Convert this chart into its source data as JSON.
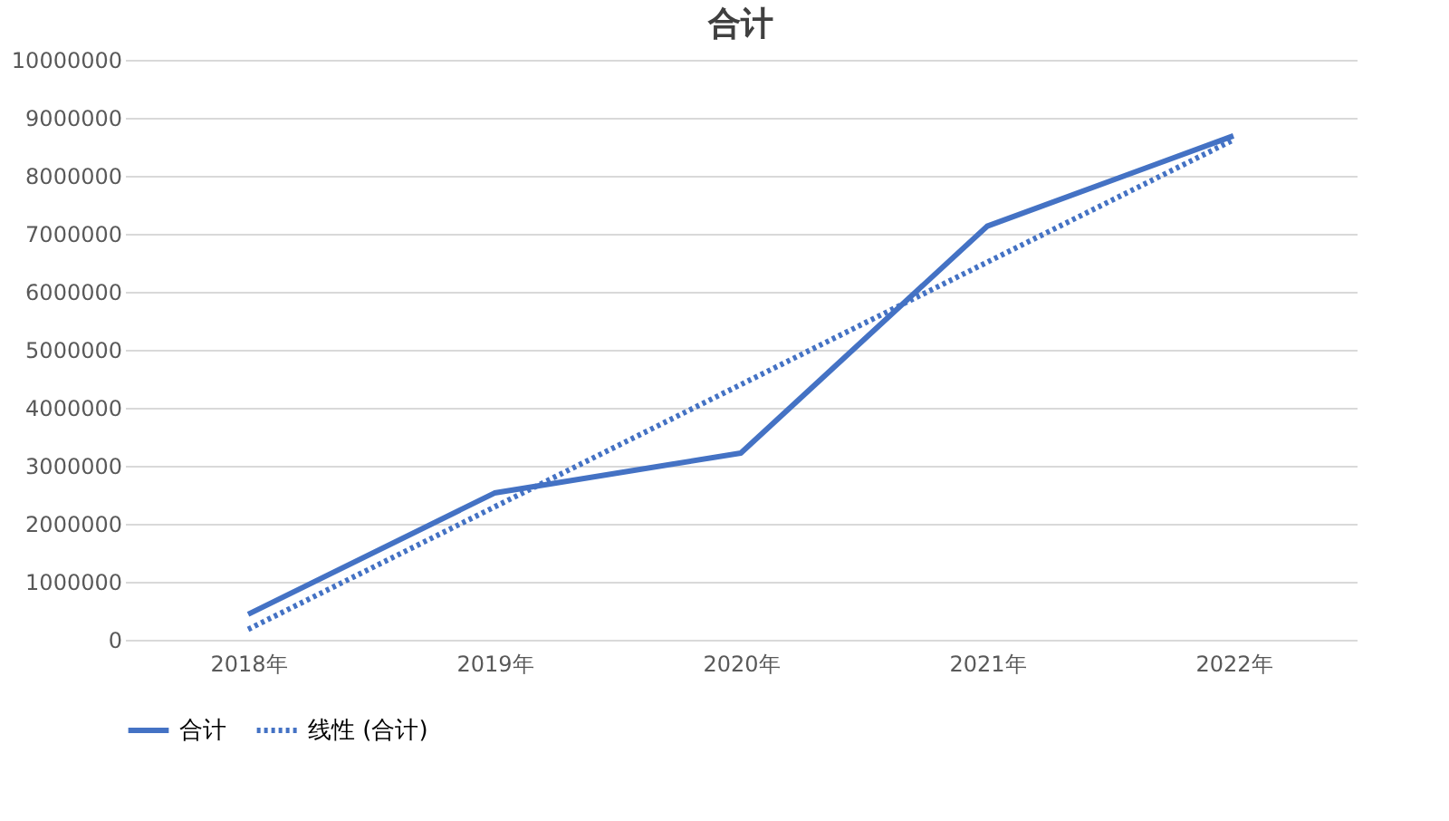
{
  "chart_data": {
    "type": "line",
    "title": "合计",
    "categories": [
      "2018年",
      "2019年",
      "2020年",
      "2021年",
      "2022年"
    ],
    "series": [
      {
        "name": "合计",
        "color": "#4472c4",
        "line_style": "solid",
        "values": [
          440000,
          2530000,
          3220000,
          7130000,
          8690000
        ]
      },
      {
        "name": "线性 (合计)",
        "color": "#4472c4",
        "line_style": "dotted",
        "values": [
          180000,
          2290000,
          4400000,
          6510000,
          8620000
        ]
      }
    ],
    "ylim": [
      0,
      10000000
    ],
    "yticks": [
      0,
      1000000,
      2000000,
      3000000,
      4000000,
      5000000,
      6000000,
      7000000,
      8000000,
      9000000,
      10000000
    ],
    "grid": "y",
    "legend": "bottom"
  }
}
